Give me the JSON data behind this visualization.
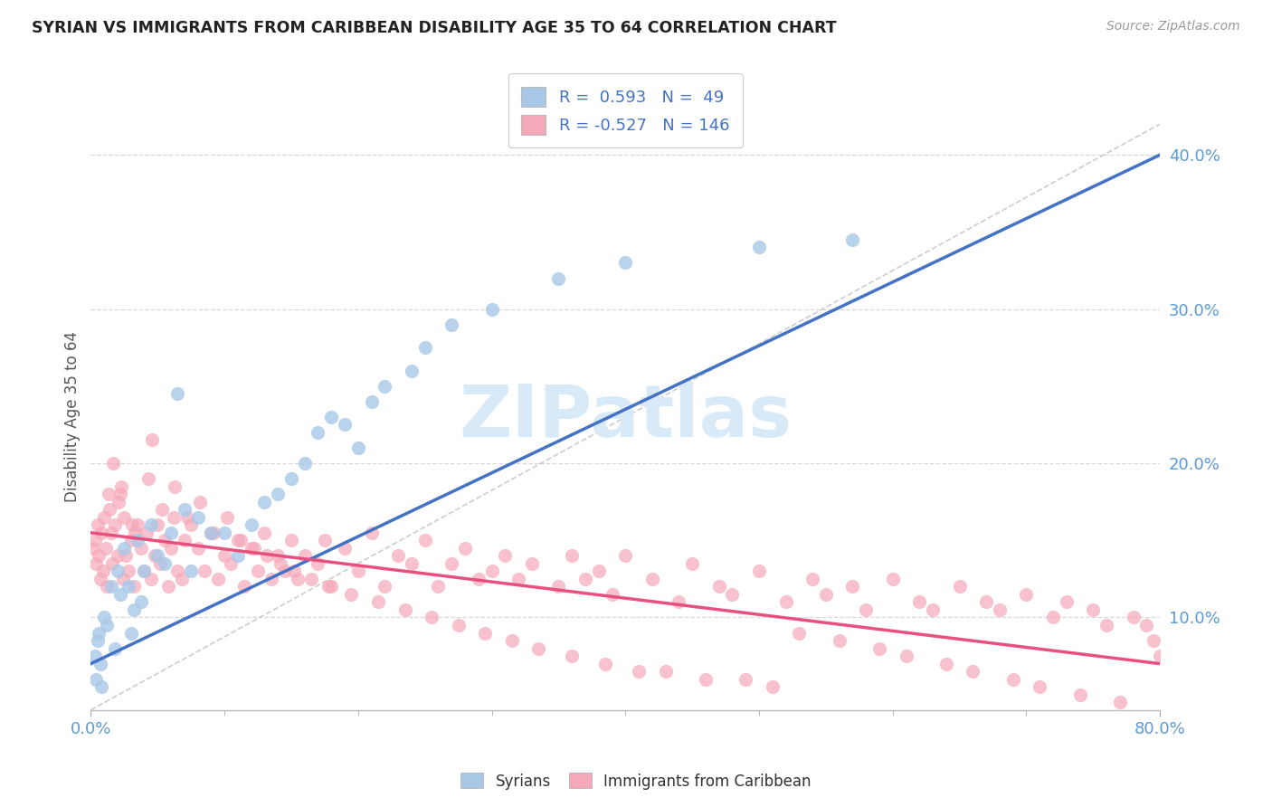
{
  "title": "SYRIAN VS IMMIGRANTS FROM CARIBBEAN DISABILITY AGE 35 TO 64 CORRELATION CHART",
  "source": "Source: ZipAtlas.com",
  "ylabel": "Disability Age 35 to 64",
  "xmin": 0.0,
  "xmax": 80.0,
  "ymin": 4.0,
  "ymax": 42.0,
  "yticks": [
    10.0,
    20.0,
    30.0,
    40.0
  ],
  "ytick_labels": [
    "10.0%",
    "20.0%",
    "30.0%",
    "40.0%"
  ],
  "syrians_color": "#a8c8e8",
  "caribbean_color": "#f5a8b8",
  "syrian_line_color": "#4472c4",
  "caribbean_line_color": "#e85080",
  "ref_line_color": "#c8c8c8",
  "watermark_color": "#d8eaf8",
  "background_color": "#ffffff",
  "grid_color": "#d8d8d8",
  "syrian_line_x0": 0.0,
  "syrian_line_y0": 7.0,
  "syrian_line_x1": 80.0,
  "syrian_line_y1": 40.0,
  "caribbean_line_x0": 0.0,
  "caribbean_line_y0": 15.5,
  "caribbean_line_x1": 80.0,
  "caribbean_line_y1": 7.0,
  "ref_line_x0": 0.0,
  "ref_line_y0": 4.0,
  "ref_line_x1": 80.0,
  "ref_line_y1": 42.0,
  "syr_x": [
    0.3,
    0.4,
    0.5,
    0.6,
    0.7,
    0.8,
    1.0,
    1.2,
    1.5,
    1.8,
    2.0,
    2.2,
    2.5,
    2.8,
    3.0,
    3.2,
    3.5,
    3.8,
    4.0,
    4.5,
    5.0,
    5.5,
    6.0,
    6.5,
    7.0,
    7.5,
    8.0,
    9.0,
    10.0,
    11.0,
    12.0,
    13.0,
    14.0,
    15.0,
    16.0,
    17.0,
    18.0,
    19.0,
    20.0,
    21.0,
    22.0,
    24.0,
    25.0,
    27.0,
    30.0,
    35.0,
    40.0,
    50.0,
    57.0
  ],
  "syr_y": [
    7.5,
    6.0,
    8.5,
    9.0,
    7.0,
    5.5,
    10.0,
    9.5,
    12.0,
    8.0,
    13.0,
    11.5,
    14.5,
    12.0,
    9.0,
    10.5,
    15.0,
    11.0,
    13.0,
    16.0,
    14.0,
    13.5,
    15.5,
    24.5,
    17.0,
    13.0,
    16.5,
    15.5,
    15.5,
    14.0,
    16.0,
    17.5,
    18.0,
    19.0,
    20.0,
    22.0,
    23.0,
    22.5,
    21.0,
    24.0,
    25.0,
    26.0,
    27.5,
    29.0,
    30.0,
    32.0,
    33.0,
    34.0,
    34.5
  ],
  "car_x": [
    0.2,
    0.3,
    0.4,
    0.5,
    0.6,
    0.7,
    0.8,
    0.9,
    1.0,
    1.1,
    1.2,
    1.4,
    1.5,
    1.6,
    1.8,
    2.0,
    2.2,
    2.4,
    2.5,
    2.6,
    2.8,
    3.0,
    3.2,
    3.5,
    3.8,
    4.0,
    4.2,
    4.5,
    4.8,
    5.0,
    5.2,
    5.5,
    5.8,
    6.0,
    6.2,
    6.5,
    6.8,
    7.0,
    7.5,
    8.0,
    8.5,
    9.0,
    9.5,
    10.0,
    10.5,
    11.0,
    11.5,
    12.0,
    12.5,
    13.0,
    13.5,
    14.0,
    14.5,
    15.0,
    15.5,
    16.0,
    17.0,
    17.5,
    18.0,
    19.0,
    20.0,
    21.0,
    22.0,
    23.0,
    24.0,
    25.0,
    26.0,
    27.0,
    28.0,
    29.0,
    30.0,
    31.0,
    32.0,
    33.0,
    35.0,
    36.0,
    37.0,
    38.0,
    39.0,
    40.0,
    42.0,
    44.0,
    45.0,
    47.0,
    48.0,
    50.0,
    52.0,
    54.0,
    55.0,
    57.0,
    58.0,
    60.0,
    62.0,
    63.0,
    65.0,
    67.0,
    68.0,
    70.0,
    72.0,
    73.0,
    75.0,
    76.0,
    78.0,
    79.0,
    79.5,
    80.0,
    1.3,
    2.1,
    3.1,
    4.3,
    5.3,
    6.3,
    7.2,
    8.2,
    9.2,
    10.2,
    11.2,
    12.2,
    13.2,
    14.2,
    15.2,
    16.5,
    17.8,
    19.5,
    21.5,
    23.5,
    25.5,
    27.5,
    29.5,
    31.5,
    33.5,
    36.0,
    38.5,
    41.0,
    43.0,
    46.0,
    49.0,
    51.0,
    53.0,
    56.0,
    59.0,
    61.0,
    64.0,
    66.0,
    69.0,
    71.0,
    74.0,
    77.0,
    1.7,
    2.3,
    3.3,
    4.6
  ],
  "car_y": [
    14.5,
    15.0,
    13.5,
    16.0,
    14.0,
    12.5,
    15.5,
    13.0,
    16.5,
    14.5,
    12.0,
    17.0,
    15.5,
    13.5,
    16.0,
    14.0,
    18.0,
    12.5,
    16.5,
    14.0,
    13.0,
    15.0,
    12.0,
    16.0,
    14.5,
    13.0,
    15.5,
    12.5,
    14.0,
    16.0,
    13.5,
    15.0,
    12.0,
    14.5,
    16.5,
    13.0,
    12.5,
    15.0,
    16.0,
    14.5,
    13.0,
    15.5,
    12.5,
    14.0,
    13.5,
    15.0,
    12.0,
    14.5,
    13.0,
    15.5,
    12.5,
    14.0,
    13.0,
    15.0,
    12.5,
    14.0,
    13.5,
    15.0,
    12.0,
    14.5,
    13.0,
    15.5,
    12.0,
    14.0,
    13.5,
    15.0,
    12.0,
    13.5,
    14.5,
    12.5,
    13.0,
    14.0,
    12.5,
    13.5,
    12.0,
    14.0,
    12.5,
    13.0,
    11.5,
    14.0,
    12.5,
    11.0,
    13.5,
    12.0,
    11.5,
    13.0,
    11.0,
    12.5,
    11.5,
    12.0,
    10.5,
    12.5,
    11.0,
    10.5,
    12.0,
    11.0,
    10.5,
    11.5,
    10.0,
    11.0,
    10.5,
    9.5,
    10.0,
    9.5,
    8.5,
    7.5,
    18.0,
    17.5,
    16.0,
    19.0,
    17.0,
    18.5,
    16.5,
    17.5,
    15.5,
    16.5,
    15.0,
    14.5,
    14.0,
    13.5,
    13.0,
    12.5,
    12.0,
    11.5,
    11.0,
    10.5,
    10.0,
    9.5,
    9.0,
    8.5,
    8.0,
    7.5,
    7.0,
    6.5,
    6.5,
    6.0,
    6.0,
    5.5,
    9.0,
    8.5,
    8.0,
    7.5,
    7.0,
    6.5,
    6.0,
    5.5,
    5.0,
    4.5,
    20.0,
    18.5,
    15.5,
    21.5
  ]
}
